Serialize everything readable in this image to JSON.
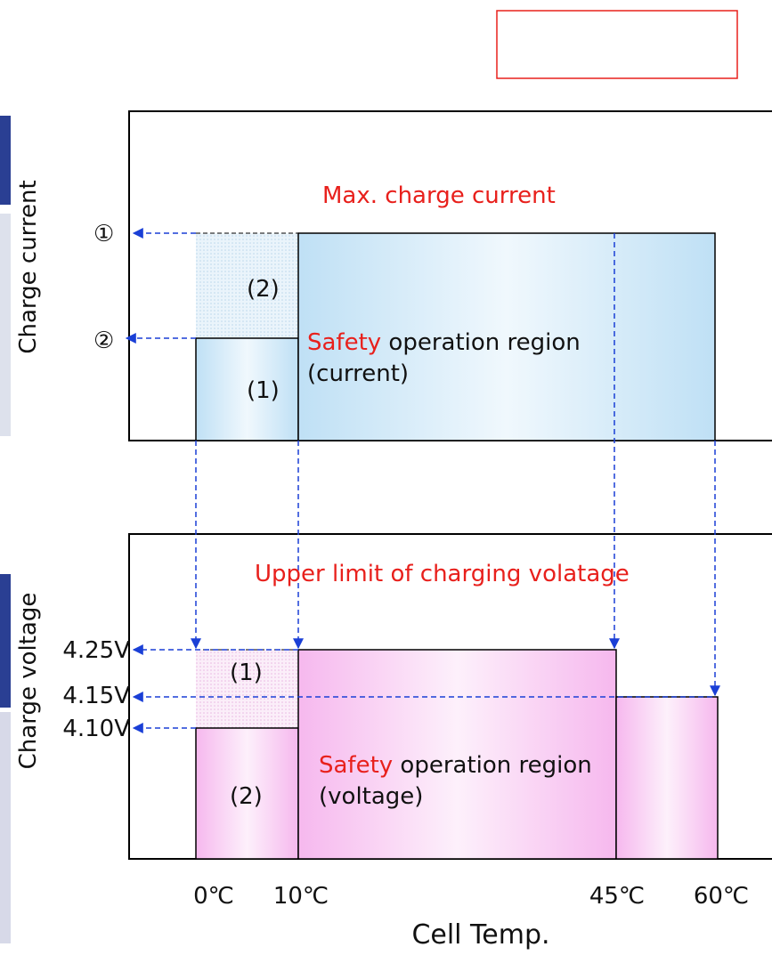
{
  "current_panel": {
    "axis_label": "Charge current",
    "marker_1": "①",
    "marker_2": "②",
    "title": "Max. charge current",
    "region_2": "(2)",
    "region_1": "(1)",
    "region_label_highlight": "Safety",
    "region_label_rest": " operation region",
    "region_label_line2": "(current)"
  },
  "voltage_panel": {
    "axis_label": "Charge voltage",
    "level_1": "4.25V",
    "level_2": "4.15V",
    "level_3": "4.10V",
    "title": "Upper limit of charging volatage",
    "region_1": "(1)",
    "region_2": "(2)",
    "region_label_highlight": "Safety",
    "region_label_rest": " operation region",
    "region_label_line2": "(voltage)"
  },
  "x_axis": {
    "ticks": [
      "0℃",
      "10℃",
      "45℃",
      "60℃"
    ],
    "label": "Cell Temp."
  }
}
